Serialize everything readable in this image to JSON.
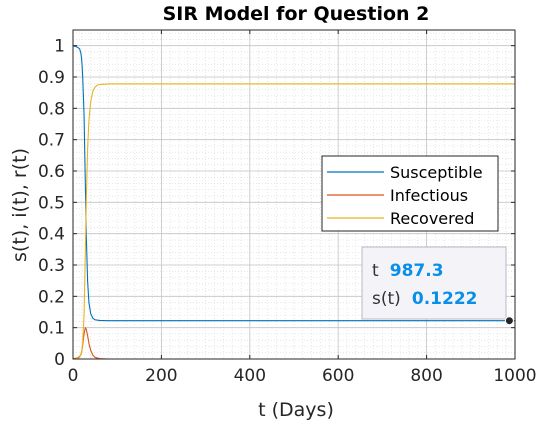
{
  "chart_data": {
    "type": "line",
    "title": "SIR Model for Question 2",
    "xlabel": "t (Days)",
    "ylabel": "s(t), i(t), r(t)",
    "xlim": [
      0,
      1000
    ],
    "ylim": [
      0,
      1.05
    ],
    "xticks": [
      0,
      200,
      400,
      600,
      800,
      1000
    ],
    "yticks": [
      0,
      0.1,
      0.2,
      0.3,
      0.4,
      0.5,
      0.6,
      0.7,
      0.8,
      0.9,
      1
    ],
    "grid": true,
    "minor_grid": true,
    "legend_position": "right",
    "series": [
      {
        "name": "Susceptible",
        "color": "#0072bd",
        "x": [
          0,
          5,
          10,
          15,
          18,
          20,
          22,
          25,
          28,
          30,
          33,
          36,
          40,
          45,
          50,
          60,
          80,
          150,
          1000
        ],
        "y": [
          1,
          0.998,
          0.995,
          0.99,
          0.975,
          0.95,
          0.9,
          0.78,
          0.55,
          0.4,
          0.25,
          0.18,
          0.145,
          0.13,
          0.125,
          0.123,
          0.1222,
          0.1222,
          0.1222
        ]
      },
      {
        "name": "Infectious",
        "color": "#d95319",
        "x": [
          0,
          10,
          15,
          18,
          20,
          22,
          25,
          28,
          30,
          33,
          36,
          40,
          45,
          50,
          60,
          80,
          1000
        ],
        "y": [
          0.001,
          0.003,
          0.008,
          0.015,
          0.025,
          0.045,
          0.08,
          0.1,
          0.095,
          0.075,
          0.05,
          0.028,
          0.012,
          0.005,
          0.001,
          0,
          0
        ]
      },
      {
        "name": "Recovered",
        "color": "#edb120",
        "x": [
          0,
          10,
          15,
          20,
          22,
          25,
          28,
          30,
          33,
          36,
          40,
          45,
          50,
          55,
          60,
          80,
          1000
        ],
        "y": [
          0,
          0.002,
          0.005,
          0.025,
          0.055,
          0.14,
          0.35,
          0.5,
          0.67,
          0.76,
          0.82,
          0.855,
          0.868,
          0.874,
          0.876,
          0.8778,
          0.8778
        ]
      }
    ],
    "datatip": {
      "x_label": "t",
      "x_value": "987.3",
      "y_label": "s(t)",
      "y_value": "0.1222",
      "x": 987.3,
      "y": 0.1222
    }
  }
}
